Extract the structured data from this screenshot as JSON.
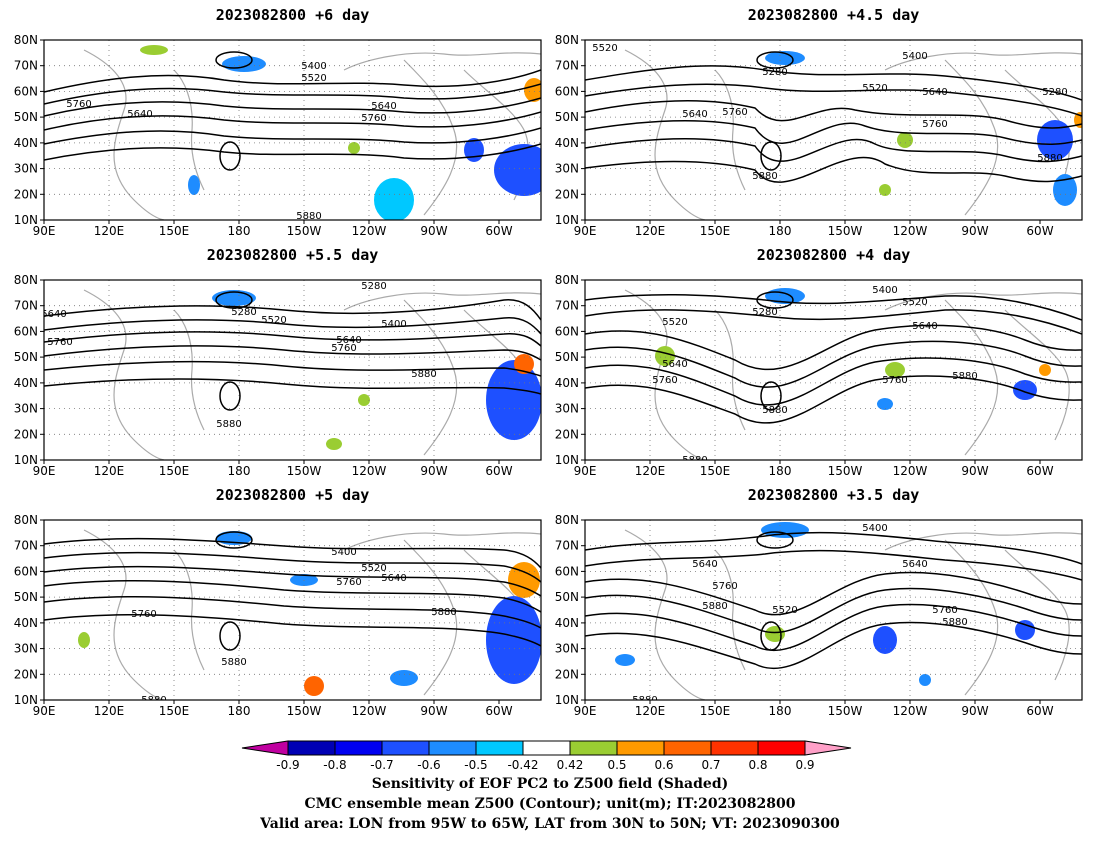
{
  "panels": [
    {
      "id": "p1",
      "title": "2023082800 +6 day"
    },
    {
      "id": "p2",
      "title": "2023082800 +4.5 day"
    },
    {
      "id": "p3",
      "title": "2023082800 +5.5 day"
    },
    {
      "id": "p4",
      "title": "2023082800 +4 day"
    },
    {
      "id": "p5",
      "title": "2023082800 +5 day"
    },
    {
      "id": "p6",
      "title": "2023082800 +3.5 day"
    }
  ],
  "map": {
    "lon_labels": [
      "90E",
      "120E",
      "150E",
      "180",
      "150W",
      "120W",
      "90W",
      "60W"
    ],
    "lat_labels": [
      "80N",
      "70N",
      "60N",
      "50N",
      "40N",
      "30N",
      "20N",
      "10N"
    ],
    "lon_range_deg_east": [
      90,
      320
    ],
    "lat_range_deg": [
      10,
      80
    ],
    "contour_labels": [
      "5280",
      "5400",
      "5520",
      "5640",
      "5760",
      "5880"
    ],
    "contour_color": "#000000",
    "coastline_color": "#aaaaaa",
    "grid_style": "dotted"
  },
  "colorbar": {
    "tick_labels": [
      "-0.9",
      "-0.8",
      "-0.7",
      "-0.6",
      "-0.5",
      "-0.42",
      "0.42",
      "0.5",
      "0.6",
      "0.7",
      "0.8",
      "0.9"
    ],
    "colors": [
      "#c000a0",
      "#0000b4",
      "#0000f0",
      "#1e50ff",
      "#1e8cff",
      "#00c8ff",
      "#ffffff",
      "#9acd32",
      "#ff9a00",
      "#ff6400",
      "#ff3200",
      "#ff0000",
      "#ffa0c8"
    ]
  },
  "captions": {
    "line1": "Sensitivity of EOF PC2 to Z500 field (Shaded)",
    "line2": "CMC ensemble mean Z500 (Contour); unit(m); IT:2023082800",
    "line3": "Valid area: LON from 95W to 65W, LAT from 30N to 50N; VT: 2023090300"
  }
}
